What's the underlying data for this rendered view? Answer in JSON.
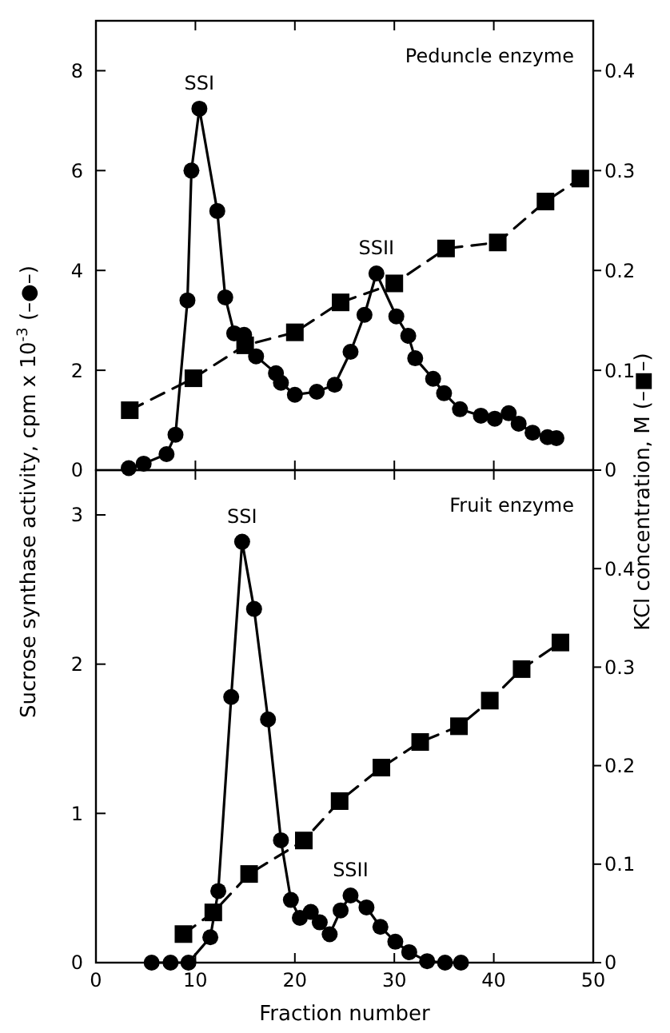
{
  "chart_data": [
    {
      "type": "line",
      "ylabel": "Sucrose synthase activity,   cpm x 10$^{-3}$  (–●–)",
      "y2label": "KCl concentration,   M (–■–)",
      "xlim": [
        0,
        50
      ],
      "xticks": [
        {
          "value": 10,
          "label": null
        },
        {
          "value": 20,
          "label": null
        },
        {
          "value": 30,
          "label": null
        },
        {
          "value": 40,
          "label": null
        }
      ],
      "ylim": [
        0,
        9
      ],
      "yticks": [
        0,
        2,
        4,
        6,
        8
      ],
      "y2lim": [
        0,
        0.45
      ],
      "y2ticks": [
        0,
        0.1,
        0.2,
        0.3,
        0.4
      ],
      "tick_labels": "y",
      "grid": false,
      "series": [
        {
          "color": "#000000",
          "marker": "circle",
          "line_style": "solid",
          "x": [
            3.3,
            4.8,
            7.1,
            8.0,
            9.2,
            9.6,
            10.4,
            12.2,
            13.0,
            13.9,
            14.9,
            16.1,
            18.1,
            18.6,
            20.0,
            22.2,
            24.0,
            25.6,
            27.0,
            28.2,
            30.2,
            31.4,
            32.1,
            33.9,
            35.0,
            36.6,
            38.7,
            40.1,
            41.5,
            42.5,
            43.9,
            45.4,
            46.3
          ],
          "values": [
            0.04,
            0.13,
            0.32,
            0.71,
            3.4,
            6.0,
            7.24,
            5.19,
            3.46,
            2.74,
            2.71,
            2.28,
            1.94,
            1.75,
            1.51,
            1.57,
            1.71,
            2.37,
            3.11,
            3.94,
            3.08,
            2.69,
            2.24,
            1.83,
            1.54,
            1.22,
            1.09,
            1.03,
            1.14,
            0.93,
            0.75,
            0.66,
            0.64
          ]
        },
        {
          "axis": "y2",
          "color": "#000000",
          "marker": "square",
          "line_style": "dashed",
          "x": [
            3.4,
            9.8,
            15.0,
            20.0,
            24.6,
            30.0,
            35.2,
            40.4,
            45.2,
            48.7
          ],
          "values": [
            0.06,
            0.092,
            0.125,
            0.138,
            0.168,
            0.187,
            0.222,
            0.228,
            0.269,
            0.292
          ]
        }
      ],
      "annotations": [
        "SSI",
        "SSII",
        "Peduncle enzyme"
      ]
    },
    {
      "type": "line",
      "xlabel": "Fraction number",
      "xlim": [
        0,
        50
      ],
      "xticks": [
        0,
        10,
        20,
        30,
        40,
        50
      ],
      "ylim": [
        0,
        3.3
      ],
      "yticks": [
        0,
        1,
        2,
        3
      ],
      "y2lim": [
        0,
        0.5
      ],
      "y2ticks": [
        0,
        0.1,
        0.2,
        0.3,
        0.4
      ],
      "grid": false,
      "series": [
        {
          "color": "#000000",
          "marker": "circle",
          "line_style": "solid",
          "x": [
            5.6,
            7.5,
            9.3,
            11.5,
            12.3,
            13.6,
            14.7,
            15.9,
            17.3,
            18.6,
            19.6,
            20.5,
            21.6,
            22.5,
            23.5,
            24.6,
            25.6,
            27.2,
            28.6,
            30.1,
            31.5,
            33.3,
            35.1,
            36.7
          ],
          "values": [
            0,
            0,
            0,
            0.17,
            0.48,
            1.78,
            2.82,
            2.37,
            1.63,
            0.82,
            0.42,
            0.3,
            0.34,
            0.27,
            0.19,
            0.35,
            0.45,
            0.37,
            0.24,
            0.14,
            0.07,
            0.01,
            0,
            0
          ]
        },
        {
          "axis": "y2",
          "color": "#000000",
          "marker": "square",
          "line_style": "dashed",
          "x": [
            8.8,
            11.8,
            15.4,
            20.9,
            24.5,
            28.7,
            32.6,
            36.5,
            39.6,
            42.8,
            46.7
          ],
          "values": [
            0.029,
            0.051,
            0.09,
            0.124,
            0.164,
            0.198,
            0.224,
            0.24,
            0.266,
            0.298,
            0.325
          ]
        }
      ],
      "annotations": [
        "SSI",
        "SSII",
        "Fruit enzyme"
      ]
    }
  ]
}
